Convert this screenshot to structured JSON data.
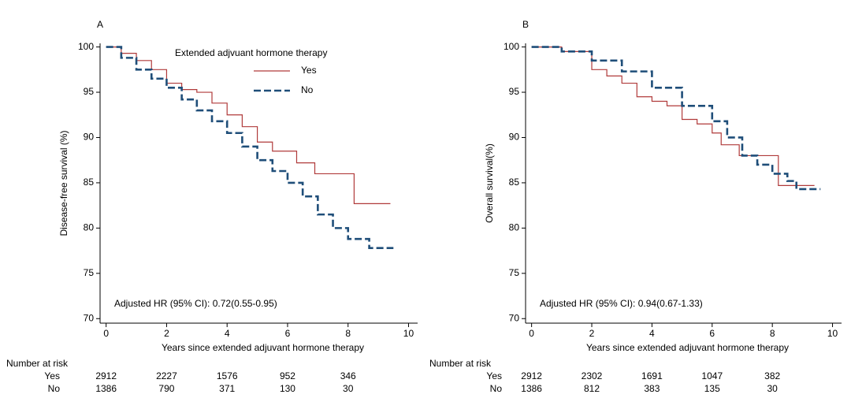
{
  "chart_data": [
    {
      "type": "line",
      "step": true,
      "title": "A",
      "xlabel": "Years since extended adjuvant hormone therapy",
      "ylabel": "Disease-free survival (%)",
      "annotation": "Adjusted HR (95% CI): 0.72(0.55-0.95)",
      "legend": true,
      "legend_title": "Extended adjvuant hormone therapy",
      "xlim": [
        -0.2,
        10.3
      ],
      "ylim": [
        69.5,
        100.4
      ],
      "xticks": [
        0,
        2,
        4,
        6,
        8,
        10
      ],
      "yticks": [
        70,
        75,
        80,
        85,
        90,
        95,
        100
      ],
      "series": [
        {
          "name": "Yes",
          "color": "#b03a3a",
          "dashed": false,
          "x": [
            0,
            0.5,
            1,
            1.5,
            2,
            2.5,
            3,
            3.5,
            4,
            4.5,
            5,
            5.5,
            6.3,
            6.9,
            8.2,
            9.4
          ],
          "values": [
            100,
            99.3,
            98.5,
            97.5,
            96,
            95.3,
            95,
            93.8,
            92.5,
            91.2,
            89.5,
            88.5,
            87.2,
            86,
            82.7,
            82.7
          ]
        },
        {
          "name": "No",
          "color": "#1f4e79",
          "dashed": true,
          "x": [
            0,
            0.5,
            1,
            1.5,
            2,
            2.5,
            3,
            3.5,
            4,
            4.5,
            5,
            5.5,
            6,
            6.5,
            7,
            7.5,
            8,
            8.7,
            9.5
          ],
          "values": [
            100,
            98.8,
            97.5,
            96.5,
            95.5,
            94.2,
            93,
            91.8,
            90.5,
            89,
            87.5,
            86.3,
            85,
            83.5,
            81.5,
            80,
            78.8,
            77.8,
            77.8
          ]
        }
      ],
      "risk_table": {
        "title": "Number at risk",
        "counts": [
          [
            2912,
            2227,
            1576,
            952,
            346
          ],
          [
            1386,
            790,
            371,
            130,
            30
          ]
        ]
      }
    },
    {
      "type": "line",
      "step": true,
      "title": "B",
      "xlabel": "Years since extended adjuvant hormone therapy",
      "ylabel": "Overall survival(%)",
      "annotation": "Adjusted HR (95% CI): 0.94(0.67-1.33)",
      "legend": false,
      "xlim": [
        -0.2,
        10.3
      ],
      "ylim": [
        69.5,
        100.4
      ],
      "xticks": [
        0,
        2,
        4,
        6,
        8,
        10
      ],
      "yticks": [
        70,
        75,
        80,
        85,
        90,
        95,
        100
      ],
      "series": [
        {
          "name": "Yes",
          "color": "#b03a3a",
          "dashed": false,
          "x": [
            0,
            1,
            2,
            2.5,
            3,
            3.5,
            4,
            4.5,
            5,
            5.5,
            6,
            6.3,
            6.9,
            8.2,
            9.4
          ],
          "values": [
            100,
            99.5,
            97.5,
            96.8,
            96,
            94.5,
            94,
            93.5,
            92,
            91.5,
            90.5,
            89.2,
            88,
            84.7,
            84.7
          ]
        },
        {
          "name": "No",
          "color": "#1f4e79",
          "dashed": true,
          "x": [
            0,
            1,
            2,
            3,
            4,
            5,
            6,
            6.5,
            7,
            7.5,
            8,
            8.5,
            8.8,
            9.6
          ],
          "values": [
            100,
            99.5,
            98.5,
            97.3,
            95.5,
            93.5,
            91.8,
            90,
            88,
            87,
            86,
            85.2,
            84.3,
            84.3
          ]
        }
      ],
      "risk_table": {
        "title": "Number at risk",
        "counts": [
          [
            2912,
            2302,
            1691,
            1047,
            382
          ],
          [
            1386,
            812,
            383,
            135,
            30
          ]
        ]
      }
    }
  ]
}
